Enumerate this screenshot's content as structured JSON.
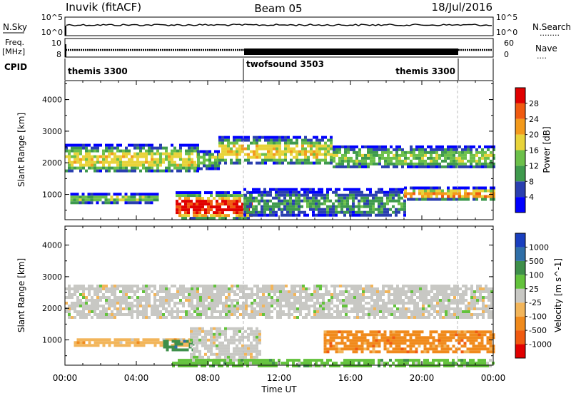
{
  "header": {
    "station": "Inuvik (fitACF)",
    "beam": "Beam 05",
    "date": "18/Jul/2016"
  },
  "strips": {
    "nsky_label": "N.Sky",
    "nsearch_label": "N.Search",
    "nsearch_dots": "........",
    "nsky_ticks": [
      "10^5",
      "10^0"
    ],
    "nsearch_ticks": [
      "10^5",
      "10^0"
    ],
    "freq_label_top": "Freq.",
    "freq_label_unit": "[MHz]",
    "freq_ticks": [
      "10",
      "8"
    ],
    "nave_label": "Nave",
    "nave_dots": "....",
    "nave_ticks": [
      "60",
      "0"
    ],
    "cpid_label": "CPID",
    "cpid_segments": [
      {
        "name": "themis 3300",
        "start": 0,
        "end": 10
      },
      {
        "name": "twofsound 3503",
        "start": 10,
        "end": 22
      },
      {
        "name": "themis 3300",
        "start": 22,
        "end": 24
      }
    ]
  },
  "chart_data": [
    {
      "type": "heatmap",
      "panel": "power",
      "ylabel": "Slant Range [km]",
      "xlabel": "",
      "ylim": [
        200,
        4600
      ],
      "xlim": [
        0,
        24
      ],
      "yticks": [
        1000,
        2000,
        3000,
        4000
      ],
      "colorbar_label": "Power [dB]",
      "colorbar_ticks": [
        "4",
        "8",
        "12",
        "16",
        "20",
        "24",
        "28"
      ],
      "colors": [
        "#0000ff",
        "#2a3fb0",
        "#3f9a4d",
        "#6cc04a",
        "#e8d33a",
        "#f39a1c",
        "#f05a10",
        "#e00000"
      ],
      "bands": [
        {
          "t0": 0,
          "t1": 7.4,
          "r0": 1700,
          "r1": 2600,
          "level": 4
        },
        {
          "t0": 7.4,
          "t1": 8.6,
          "r0": 1850,
          "r1": 2400,
          "level": 3
        },
        {
          "t0": 8.6,
          "t1": 15,
          "r0": 1950,
          "r1": 2850,
          "level": 4
        },
        {
          "t0": 15,
          "t1": 24,
          "r0": 1850,
          "r1": 2550,
          "level": 3
        },
        {
          "t0": 0.3,
          "t1": 5.2,
          "r0": 750,
          "r1": 1050,
          "level": 3
        },
        {
          "t0": 6.2,
          "t1": 10.5,
          "r0": 200,
          "r1": 1100,
          "level": 7
        },
        {
          "t0": 10,
          "t1": 19,
          "r0": 300,
          "r1": 1200,
          "level": 2
        },
        {
          "t0": 19,
          "t1": 24,
          "r0": 850,
          "r1": 1250,
          "level": 5
        }
      ]
    },
    {
      "type": "heatmap",
      "panel": "velocity",
      "ylabel": "Slant Range [km]",
      "xlabel": "Time UT",
      "ylim": [
        200,
        4600
      ],
      "xlim": [
        0,
        24
      ],
      "yticks": [
        1000,
        2000,
        3000,
        4000
      ],
      "xticks": [
        "00:00",
        "04:00",
        "08:00",
        "12:00",
        "16:00",
        "20:00",
        "00:00"
      ],
      "colorbar_label": "Velocity [m s^-1]",
      "colorbar_ticks": [
        "1000",
        "500",
        "100",
        "25",
        "-25",
        "-100",
        "-500",
        "-1000"
      ],
      "colors": [
        "#1a3fbf",
        "#2f6fa8",
        "#3e8f4a",
        "#63c23c",
        "#c8c8c4",
        "#f2b55a",
        "#f08a1c",
        "#f05a10",
        "#e00000"
      ],
      "bands": [
        {
          "t0": 0,
          "t1": 24,
          "r0": 1700,
          "r1": 2750,
          "level": 4
        },
        {
          "t0": 0.5,
          "t1": 7,
          "r0": 800,
          "r1": 1050,
          "level": 5
        },
        {
          "t0": 5.5,
          "t1": 7.2,
          "r0": 650,
          "r1": 1000,
          "level": 2
        },
        {
          "t0": 7,
          "t1": 11,
          "r0": 400,
          "r1": 1400,
          "level": 4
        },
        {
          "t0": 14.5,
          "t1": 24,
          "r0": 650,
          "r1": 1300,
          "level": 6
        },
        {
          "t0": 6,
          "t1": 24,
          "r0": 200,
          "r1": 400,
          "level": 3
        }
      ]
    }
  ]
}
